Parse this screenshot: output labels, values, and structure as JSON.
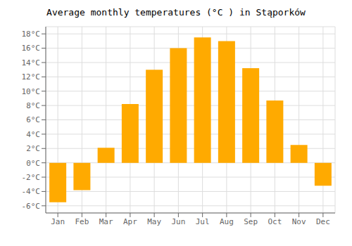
{
  "chart_data": {
    "type": "bar",
    "title": "Average monthly temperatures (°C ) in Stąporków",
    "categories": [
      "Jan",
      "Feb",
      "Mar",
      "Apr",
      "May",
      "Jun",
      "Jul",
      "Aug",
      "Sep",
      "Oct",
      "Nov",
      "Dec"
    ],
    "values": [
      -5.5,
      -3.8,
      2.1,
      8.2,
      13.0,
      16.0,
      17.5,
      17.0,
      13.2,
      8.7,
      2.5,
      -3.2
    ],
    "color": "#FFAA00",
    "ylim": [
      -7,
      19
    ],
    "yticks": [
      {
        "value": -6,
        "label": "-6°C"
      },
      {
        "value": -4,
        "label": "-4°C"
      },
      {
        "value": -2,
        "label": "-2°C"
      },
      {
        "value": 0,
        "label": "0°C"
      },
      {
        "value": 2,
        "label": "2°C"
      },
      {
        "value": 4,
        "label": "4°C"
      },
      {
        "value": 6,
        "label": "6°C"
      },
      {
        "value": 8,
        "label": "8°C"
      },
      {
        "value": 10,
        "label": "10°C"
      },
      {
        "value": 12,
        "label": "12°C"
      },
      {
        "value": 14,
        "label": "14°C"
      },
      {
        "value": 16,
        "label": "16°C"
      },
      {
        "value": 18,
        "label": "18°C"
      }
    ],
    "grid": true
  }
}
